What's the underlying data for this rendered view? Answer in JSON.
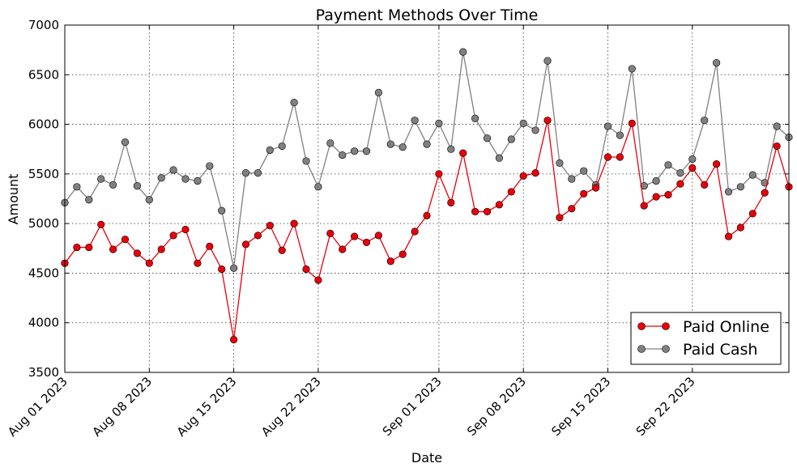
{
  "chart_data": {
    "type": "line",
    "title": "Payment Methods Over Time",
    "xlabel": "Date",
    "ylabel": "Amount",
    "ylim": [
      3500,
      7000
    ],
    "xlim": [
      "2023-08-01",
      "2023-09-30"
    ],
    "yticks": [
      3500,
      4000,
      4500,
      5000,
      5500,
      6000,
      6500,
      7000
    ],
    "xticks": [
      {
        "date": "2023-08-01",
        "label": "Aug 01 2023"
      },
      {
        "date": "2023-08-08",
        "label": "Aug 08 2023"
      },
      {
        "date": "2023-08-15",
        "label": "Aug 15 2023"
      },
      {
        "date": "2023-08-22",
        "label": "Aug 22 2023"
      },
      {
        "date": "2023-09-01",
        "label": "Sep 01 2023"
      },
      {
        "date": "2023-09-08",
        "label": "Sep 08 2023"
      },
      {
        "date": "2023-09-15",
        "label": "Sep 15 2023"
      },
      {
        "date": "2023-09-22",
        "label": "Sep 22 2023"
      }
    ],
    "grid": true,
    "legend_position": "lower-right",
    "x": [
      "2023-08-01",
      "2023-08-02",
      "2023-08-03",
      "2023-08-04",
      "2023-08-05",
      "2023-08-06",
      "2023-08-07",
      "2023-08-08",
      "2023-08-09",
      "2023-08-10",
      "2023-08-11",
      "2023-08-12",
      "2023-08-13",
      "2023-08-14",
      "2023-08-15",
      "2023-08-16",
      "2023-08-17",
      "2023-08-18",
      "2023-08-19",
      "2023-08-20",
      "2023-08-21",
      "2023-08-22",
      "2023-08-23",
      "2023-08-24",
      "2023-08-25",
      "2023-08-26",
      "2023-08-27",
      "2023-08-28",
      "2023-08-29",
      "2023-08-30",
      "2023-08-31",
      "2023-09-01",
      "2023-09-02",
      "2023-09-03",
      "2023-09-04",
      "2023-09-05",
      "2023-09-06",
      "2023-09-07",
      "2023-09-08",
      "2023-09-09",
      "2023-09-10",
      "2023-09-11",
      "2023-09-12",
      "2023-09-13",
      "2023-09-14",
      "2023-09-15",
      "2023-09-16",
      "2023-09-17",
      "2023-09-18",
      "2023-09-19",
      "2023-09-20",
      "2023-09-21",
      "2023-09-22",
      "2023-09-23",
      "2023-09-24",
      "2023-09-25",
      "2023-09-26",
      "2023-09-27",
      "2023-09-28",
      "2023-09-29",
      "2023-09-30"
    ],
    "series": [
      {
        "name": "Paid Online",
        "color": "#e8000b",
        "values": [
          4600,
          4760,
          4760,
          4990,
          4740,
          4840,
          4700,
          4600,
          4740,
          4880,
          4940,
          4600,
          4770,
          4540,
          3830,
          4790,
          4880,
          4980,
          4730,
          5000,
          4540,
          4430,
          4900,
          4740,
          4870,
          4810,
          4880,
          4620,
          4690,
          4920,
          5080,
          5500,
          5210,
          5710,
          5120,
          5120,
          5190,
          5320,
          5480,
          5510,
          6040,
          5060,
          5150,
          5300,
          5360,
          5670,
          5670,
          6010,
          5180,
          5270,
          5290,
          5400,
          5560,
          5390,
          5600,
          4870,
          4960,
          5100,
          5310,
          5780,
          5370
        ]
      },
      {
        "name": "Paid Cash",
        "color": "#808080",
        "values": [
          5210,
          5370,
          5240,
          5450,
          5390,
          5820,
          5380,
          5240,
          5460,
          5540,
          5450,
          5430,
          5580,
          5130,
          4550,
          5510,
          5510,
          5740,
          5780,
          6220,
          5630,
          5370,
          5810,
          5690,
          5730,
          5730,
          6320,
          5800,
          5770,
          6040,
          5800,
          6010,
          5750,
          6730,
          6060,
          5860,
          5660,
          5850,
          6010,
          5940,
          6640,
          5610,
          5450,
          5530,
          5390,
          5980,
          5890,
          6560,
          5380,
          5430,
          5590,
          5510,
          5650,
          6040,
          6620,
          5320,
          5370,
          5490,
          5410,
          5980,
          5870
        ]
      }
    ]
  }
}
